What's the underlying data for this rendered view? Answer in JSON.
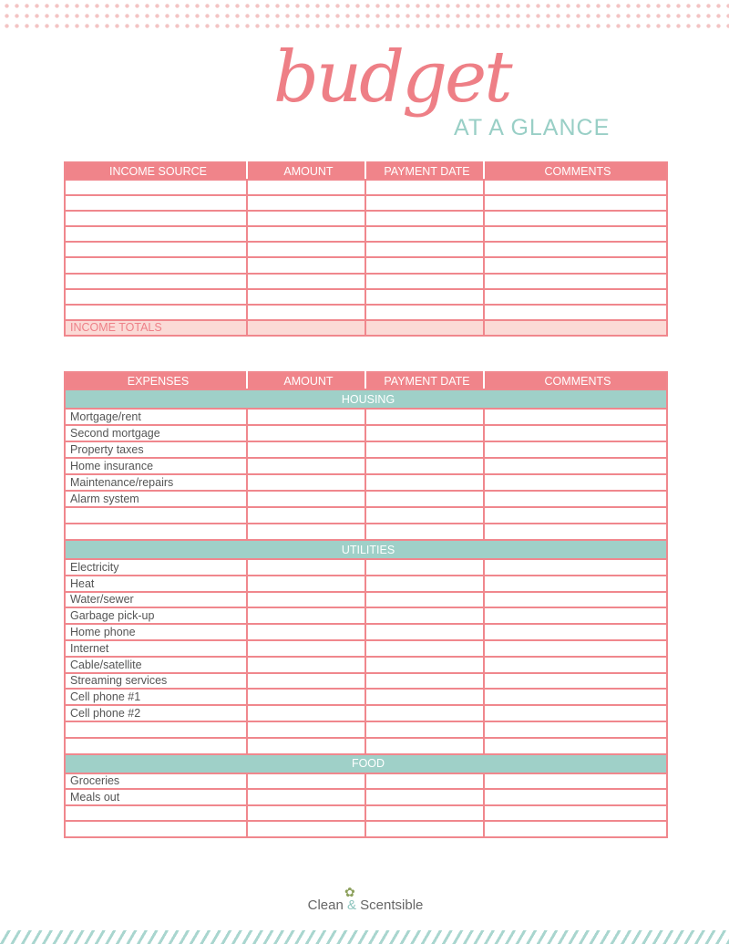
{
  "header": {
    "title_script": "budget",
    "title_sub": "AT A GLANCE"
  },
  "colors": {
    "pink": "#f0848a",
    "teal": "#9fd0c8",
    "totals": "#fbdad6"
  },
  "income": {
    "columns": [
      "INCOME SOURCE",
      "AMOUNT",
      "PAYMENT DATE",
      "COMMENTS"
    ],
    "rows": [
      "",
      "",
      "",
      "",
      "",
      "",
      "",
      "",
      ""
    ],
    "totals_label": "INCOME TOTALS"
  },
  "expenses": {
    "columns": [
      "EXPENSES",
      "AMOUNT",
      "PAYMENT DATE",
      "COMMENTS"
    ],
    "sections": [
      {
        "title": "HOUSING",
        "rows": [
          "Mortgage/rent",
          "Second mortgage",
          "Property taxes",
          "Home insurance",
          "Maintenance/repairs",
          "Alarm system",
          "",
          ""
        ]
      },
      {
        "title": "UTILITIES",
        "rows": [
          "Electricity",
          "Heat",
          "Water/sewer",
          "Garbage pick-up",
          "Home phone",
          "Internet",
          "Cable/satellite",
          "Streaming services",
          "Cell phone #1",
          "Cell phone #2",
          "",
          ""
        ]
      },
      {
        "title": "FOOD",
        "rows": [
          "Groceries",
          "Meals out",
          "",
          ""
        ]
      }
    ]
  },
  "footer": {
    "brand_a": "Clean",
    "brand_amp": "&",
    "brand_b": "Scentsible",
    "logo_icon": "flower-sprig-icon"
  }
}
